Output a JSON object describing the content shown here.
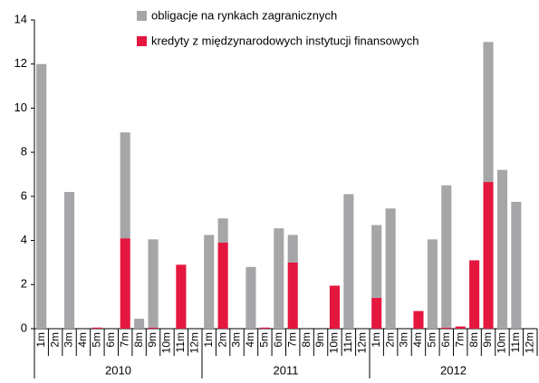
{
  "chart_data": {
    "type": "bar",
    "stacked": true,
    "categories": [
      "1m",
      "2m",
      "3m",
      "4m",
      "5m",
      "6m",
      "7m",
      "8m",
      "9m",
      "10m",
      "11m",
      "12m",
      "1m",
      "2m",
      "3m",
      "4m",
      "5m",
      "6m",
      "7m",
      "8m",
      "9m",
      "10m",
      "11m",
      "12m",
      "1m",
      "2m",
      "3m",
      "4m",
      "5m",
      "6m",
      "7m",
      "8m",
      "9m",
      "10m",
      "11m",
      "12m"
    ],
    "x_groups": [
      "2010",
      "2011",
      "2012"
    ],
    "series": [
      {
        "name": "kredyty z międzynarodowych instytucji finansowych",
        "color": "#e4173e",
        "values": [
          0,
          0,
          0,
          0,
          0.05,
          0,
          4.1,
          0,
          0.05,
          0,
          2.9,
          0,
          0,
          3.9,
          0,
          0,
          0.05,
          0,
          3.0,
          0,
          0,
          1.95,
          0,
          0,
          1.4,
          0,
          0,
          0.8,
          0,
          0.05,
          0.1,
          3.1,
          6.65,
          0,
          0,
          0
        ]
      },
      {
        "name": "obligacje na rynkach zagranicznych",
        "color": "#a6a6a8",
        "values": [
          12,
          0,
          6.2,
          0,
          0,
          0,
          4.8,
          0.45,
          4.0,
          0,
          0,
          0,
          4.25,
          1.1,
          0,
          2.8,
          0,
          4.55,
          1.25,
          0,
          0,
          0,
          6.1,
          0,
          3.3,
          5.45,
          0,
          0,
          4.05,
          6.45,
          0,
          0,
          6.35,
          7.2,
          5.75,
          0
        ]
      }
    ],
    "ylim": [
      0,
      14
    ],
    "yticks": [
      0,
      2,
      4,
      6,
      8,
      10,
      12,
      14
    ],
    "grid": false
  }
}
